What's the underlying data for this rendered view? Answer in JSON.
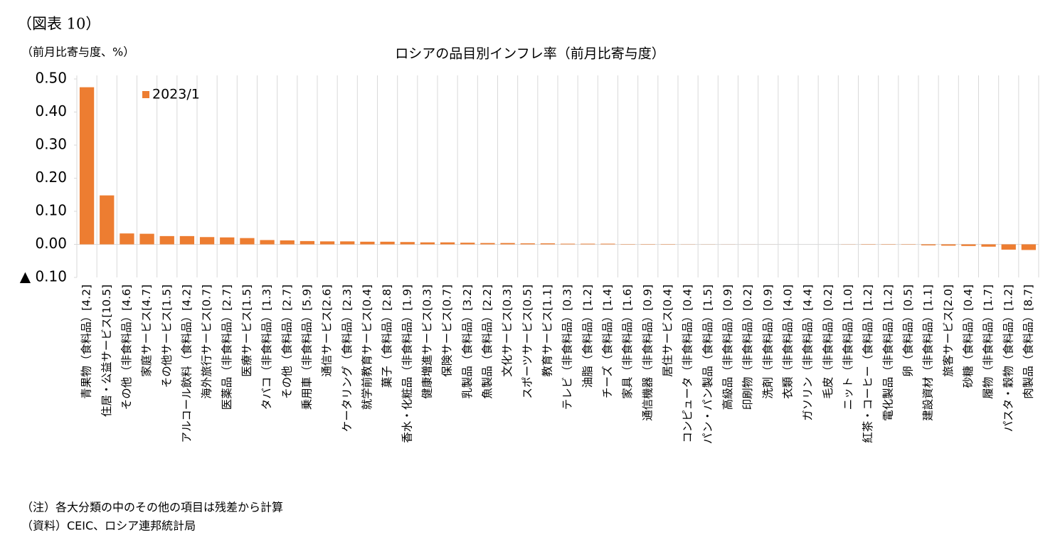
{
  "figure_label": "（図表 10）",
  "notes": [
    "（注）各大分類の中のその他の項目は残差から計算",
    "（資料）CEIC、ロシア連邦統計局"
  ],
  "chart_data": {
    "type": "bar",
    "title": "ロシアの品目別インフレ率（前月比寄与度）",
    "y_label": "（前月比寄与度、%）",
    "categories": [
      "青果物（食料品）[4.2]",
      "住居・公益サービス[10.5]",
      "その他（非食料品）[4.6]",
      "家庭サービス[4.7]",
      "その他サービス[1.5]",
      "アルコール飲料（食料品）[4.2]",
      "海外旅行サービス[0.7]",
      "医薬品（非食料品）[2.7]",
      "医療サービス[1.5]",
      "タバコ（非食料品）[1.3]",
      "その他（食料品）[2.7]",
      "乗用車（非食料品）[5.9]",
      "通信サービス[2.6]",
      "ケータリング（食料品）[2.3]",
      "就学前教育サービス[0.4]",
      "菓子（食料品）[2.8]",
      "香水・化粧品（非食料品）[1.9]",
      "健康増進サービス[0.3]",
      "保険サービス[0.7]",
      "乳製品（食料品）[3.2]",
      "魚製品（食料品）[2.2]",
      "文化サービス[0.3]",
      "スポーツサービス[0.5]",
      "教育サービス[1.1]",
      "テレビ（非食料品）[0.3]",
      "油脂（食料品）[1.2]",
      "チーズ（食料品）[1.4]",
      "家具（非食料品）[1.6]",
      "通信機器（非食料品）[0.9]",
      "居住サービス[0.4]",
      "コンピュータ（非食料品）[0.4]",
      "パン・パン製品（食料品）[1.5]",
      "高級品（非食料品）[0.9]",
      "印刷物（非食料品）[0.2]",
      "洗剤（非食料品）[0.9]",
      "衣類（非食料品）[4.0]",
      "ガソリン（非食料品）[4.4]",
      "毛皮（非食料品）[0.2]",
      "ニット（非食料品）[1.0]",
      "紅茶・コーヒー（食料品）[1.2]",
      "電化製品（非食料品）[1.2]",
      "卵（食料品）[0.5]",
      "建設資材（非食料品）[1.1]",
      "旅客サービス[2.0]",
      "砂糖（食料品）[0.4]",
      "履物（非食料品）[1.7]",
      "パスタ・穀物（食料品）[1.2]",
      "肉製品（食料品）[8.7]"
    ],
    "series": [
      {
        "name": "2023/1",
        "color": "#ed7d31",
        "values": [
          0.475,
          0.148,
          0.033,
          0.032,
          0.025,
          0.025,
          0.022,
          0.021,
          0.019,
          0.013,
          0.012,
          0.01,
          0.009,
          0.009,
          0.008,
          0.008,
          0.007,
          0.006,
          0.006,
          0.005,
          0.004,
          0.004,
          0.003,
          0.003,
          0.002,
          0.002,
          0.002,
          0.001,
          0.001,
          0.001,
          0.0005,
          0.0004,
          0.0003,
          0.0002,
          0.0001,
          0,
          0,
          0,
          -0.0005,
          -0.001,
          -0.001,
          -0.001,
          -0.003,
          -0.004,
          -0.005,
          -0.007,
          -0.016,
          -0.017
        ]
      }
    ],
    "ylim": [
      -0.1,
      0.5
    ],
    "yticks": [
      {
        "value": 0.5,
        "label": "0.50"
      },
      {
        "value": 0.4,
        "label": "0.40"
      },
      {
        "value": 0.3,
        "label": "0.30"
      },
      {
        "value": 0.2,
        "label": "0.20"
      },
      {
        "value": 0.1,
        "label": "0.10"
      },
      {
        "value": 0,
        "label": "0.00"
      },
      {
        "value": -0.1,
        "label": "▲ 0.10"
      }
    ],
    "legend": "upper-left"
  }
}
